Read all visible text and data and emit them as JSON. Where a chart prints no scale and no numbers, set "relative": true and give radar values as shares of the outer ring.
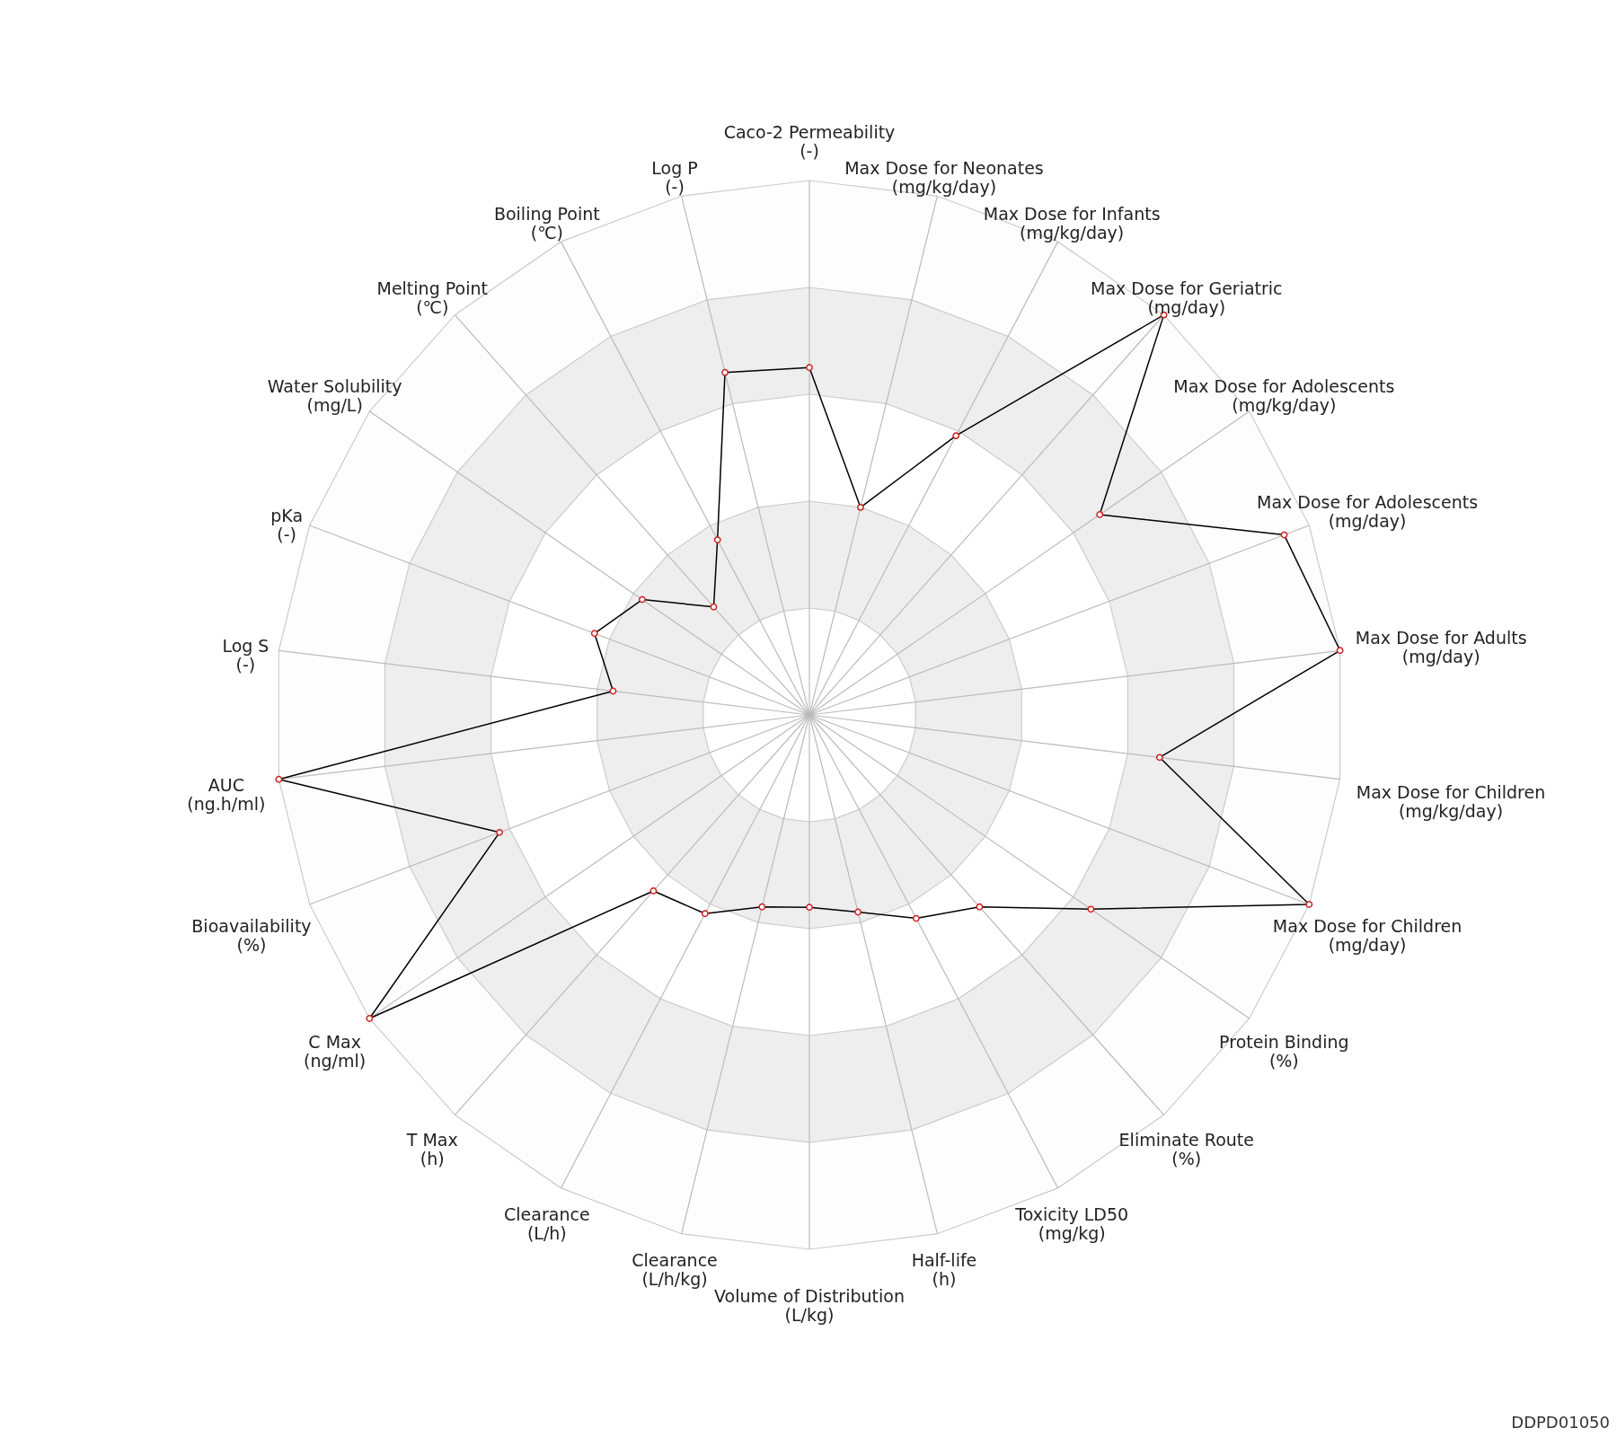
{
  "chart_data": {
    "type": "radar",
    "relative": true,
    "marker": "circle",
    "line_style": "solid",
    "grid": true,
    "categories": [
      "Caco-2 Permeability (-)",
      "Max Dose for Neonates (mg/kg/day)",
      "Max Dose for Infants (mg/kg/day)",
      "Max Dose for Geriatric (mg/day)",
      "Max Dose for Adolescents (mg/kg/day)",
      "Max Dose for Adolescents (mg/day)",
      "Max Dose for Adults (mg/day)",
      "Max Dose for Children (mg/kg/day)",
      "Max Dose for Children (mg/day)",
      "Protein Binding (%)",
      "Eliminate Route (%)",
      "Toxicity LD50 (mg/kg)",
      "Half-life (h)",
      "Volume of Distribution (L/kg)",
      "Clearance (L/h/kg)",
      "Clearance (L/h)",
      "T Max (h)",
      "C Max (ng/ml)",
      "Bioavailability (%)",
      "AUC (ng.h/ml)",
      "Log S (-)",
      "pKa (-)",
      "Water Solubility (mg/L)",
      "Melting Point (℃)",
      "Boiling Point (℃)",
      "Log P (-)"
    ],
    "series": [
      {
        "color": "#000000",
        "values": [
          0.65,
          0.4,
          0.59,
          1.0,
          0.66,
          0.95,
          1.0,
          0.66,
          1.0,
          0.64,
          0.48,
          0.43,
          0.38,
          0.36,
          0.37,
          0.42,
          0.44,
          1.0,
          0.62,
          1.0,
          0.37,
          0.43,
          0.38,
          0.27,
          0.37,
          0.66
        ]
      }
    ],
    "annotations": [
      "DDPD01050"
    ]
  }
}
